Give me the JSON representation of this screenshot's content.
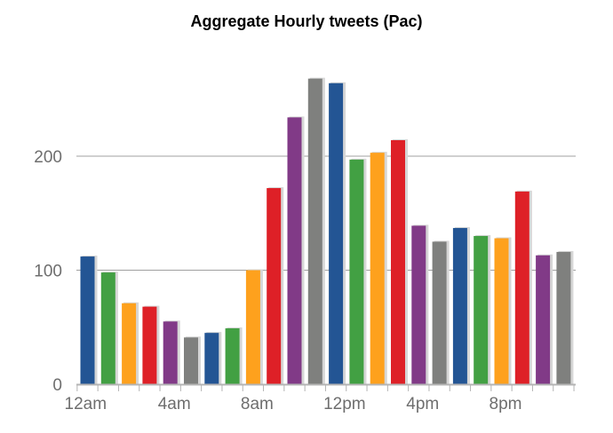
{
  "chart_data": {
    "type": "bar",
    "title": "Aggregate Hourly tweets (Pac)",
    "xlabel": "",
    "ylabel": "",
    "ylim": [
      0,
      280
    ],
    "y_ticks": [
      0,
      100,
      200
    ],
    "y_tick_labels": [
      "0",
      "100",
      "200"
    ],
    "grid": true,
    "legend": "none",
    "categories": [
      "0",
      "1",
      "2",
      "3",
      "4",
      "5",
      "6",
      "7",
      "8",
      "9",
      "10",
      "11",
      "12",
      "13",
      "14",
      "15",
      "16",
      "17",
      "18",
      "19",
      "20",
      "21",
      "22",
      "23"
    ],
    "x_tick_labels": [
      {
        "index": 0,
        "label": "12am"
      },
      {
        "index": 4,
        "label": "4am"
      },
      {
        "index": 8,
        "label": "8am"
      },
      {
        "index": 12,
        "label": "12pm"
      },
      {
        "index": 16,
        "label": "4pm"
      },
      {
        "index": 20,
        "label": "8pm"
      }
    ],
    "values": [
      112,
      98,
      71,
      68,
      55,
      41,
      45,
      49,
      100,
      172,
      234,
      268,
      264,
      197,
      203,
      214,
      139,
      125,
      137,
      130,
      128,
      169,
      113,
      116
    ],
    "colors": [
      "#235594",
      "#42a043",
      "#fea11d",
      "#de2027",
      "#813a87",
      "#7f807e",
      "#235594",
      "#42a043",
      "#fea11d",
      "#de2027",
      "#813a87",
      "#7f807e",
      "#235594",
      "#42a043",
      "#fea11d",
      "#de2027",
      "#813a87",
      "#7f807e",
      "#235594",
      "#42a043",
      "#fea11d",
      "#de2027",
      "#813a87",
      "#7f807e"
    ],
    "gridline_color": "#a0a0a0",
    "axis_color": "#b4b4b4"
  }
}
